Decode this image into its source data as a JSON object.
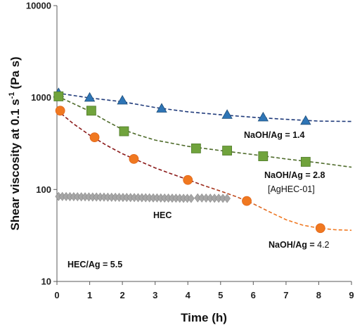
{
  "chart_data": {
    "type": "scatter",
    "xlabel": "Time (h)",
    "ylabel_main": "Shear viscosity at 0.1 s",
    "ylabel_sup": "-1",
    "ylabel_unit": "(Pa s)",
    "xlim": [
      0,
      9
    ],
    "ylim": [
      10,
      10000
    ],
    "yscale": "log",
    "grid": false,
    "x_ticks": [
      "0",
      "1",
      "2",
      "3",
      "4",
      "5",
      "6",
      "7",
      "8",
      "9"
    ],
    "y_ticks": [
      "10",
      "100",
      "1000",
      "10000"
    ],
    "series": [
      {
        "marker": "triangle",
        "color": "#2E75B6",
        "trend_color": "#1F3A7A",
        "points": [
          [
            0.05,
            1120
          ],
          [
            1.0,
            1000
          ],
          [
            2.0,
            930
          ],
          [
            3.2,
            760
          ],
          [
            5.2,
            650
          ],
          [
            6.3,
            610
          ],
          [
            7.6,
            560
          ]
        ],
        "trend": [
          [
            0.0,
            1120
          ],
          [
            1.0,
            990
          ],
          [
            2.0,
            900
          ],
          [
            3.0,
            780
          ],
          [
            4.0,
            700
          ],
          [
            5.0,
            650
          ],
          [
            6.0,
            610
          ],
          [
            7.0,
            580
          ],
          [
            8.0,
            555
          ],
          [
            9.0,
            550
          ]
        ]
      },
      {
        "marker": "square",
        "color": "#70A33C",
        "trend_color": "#4E6B2A",
        "points": [
          [
            0.05,
            1030
          ],
          [
            1.05,
            720
          ],
          [
            2.05,
            430
          ],
          [
            4.25,
            280
          ],
          [
            5.2,
            265
          ],
          [
            6.3,
            230
          ],
          [
            7.6,
            200
          ]
        ],
        "trend": [
          [
            0.0,
            1040
          ],
          [
            0.5,
            860
          ],
          [
            1.0,
            710
          ],
          [
            1.5,
            560
          ],
          [
            2.0,
            450
          ],
          [
            2.5,
            390
          ],
          [
            3.0,
            345
          ],
          [
            4.0,
            295
          ],
          [
            5.0,
            265
          ],
          [
            6.0,
            240
          ],
          [
            7.0,
            215
          ],
          [
            8.0,
            195
          ],
          [
            9.0,
            175
          ]
        ]
      },
      {
        "marker": "circle",
        "color": "#F07820",
        "trend_color": "#8B1A1A",
        "trend_color_end": "#F07820",
        "points": [
          [
            0.1,
            720
          ],
          [
            1.15,
            370
          ],
          [
            2.35,
            215
          ],
          [
            4.0,
            127
          ],
          [
            5.8,
            75
          ],
          [
            8.05,
            38
          ]
        ],
        "trend": [
          [
            0.0,
            730
          ],
          [
            0.5,
            520
          ],
          [
            1.0,
            390
          ],
          [
            1.5,
            305
          ],
          [
            2.0,
            245
          ],
          [
            2.5,
            205
          ],
          [
            3.0,
            172
          ],
          [
            3.5,
            148
          ],
          [
            4.0,
            128
          ],
          [
            4.5,
            110
          ],
          [
            5.0,
            96
          ],
          [
            5.5,
            83
          ],
          [
            6.0,
            70
          ],
          [
            6.5,
            57
          ],
          [
            7.0,
            47
          ],
          [
            7.5,
            41
          ],
          [
            8.0,
            38
          ],
          [
            8.5,
            36.5
          ],
          [
            9.0,
            36
          ]
        ]
      },
      {
        "marker": "diamond",
        "color": "#A6A6A6",
        "segments": [
          {
            "x_start": 0.05,
            "x_end": 4.1,
            "count": 36,
            "y_start": 84,
            "y_end": 80
          },
          {
            "x_start": 4.3,
            "x_end": 5.2,
            "count": 8,
            "y_start": 81,
            "y_end": 80
          }
        ]
      }
    ],
    "annotations": {
      "a1": "NaOH/Ag = 1.4",
      "a2": "NaOH/Ag = 2.8",
      "a3": "[AgHEC-01]",
      "a4_bold": "NaOH/Ag = ",
      "a4_value": "4.2",
      "a5": "HEC",
      "a6": "HEC/Ag = 5.5"
    }
  }
}
